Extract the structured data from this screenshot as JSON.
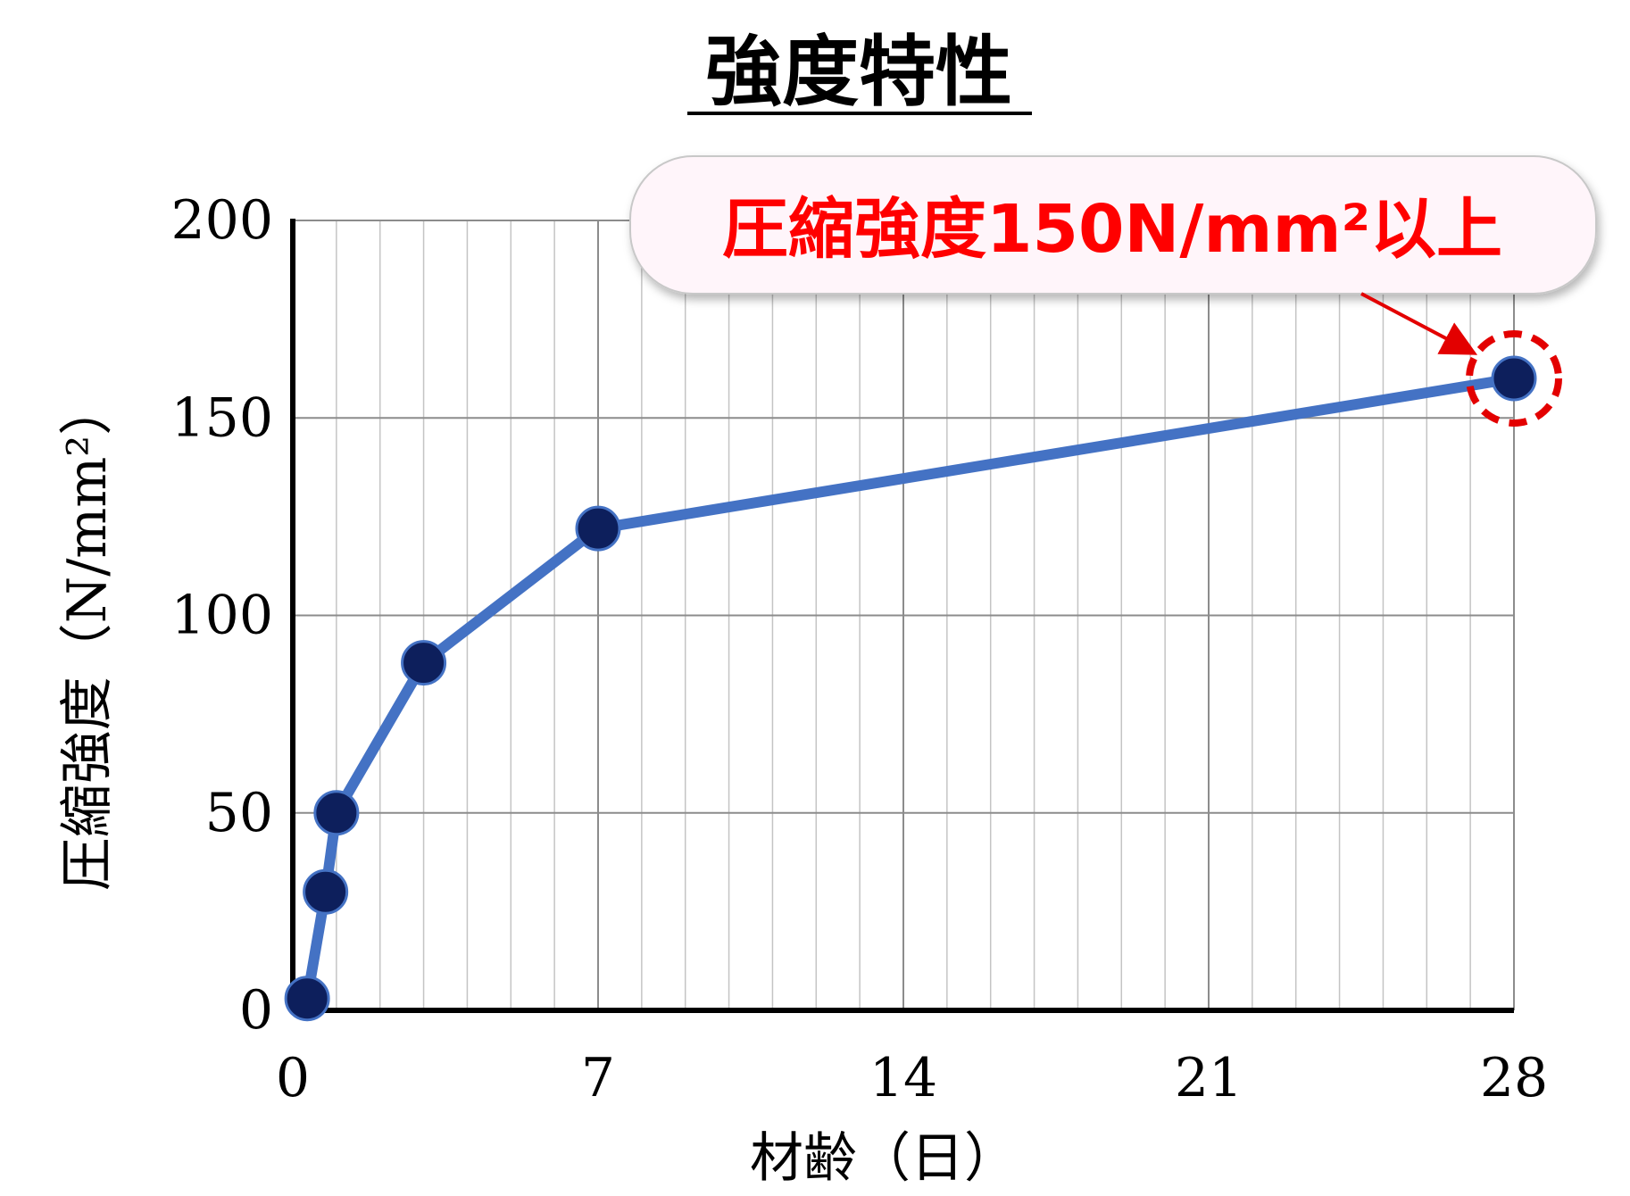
{
  "title": "強度特性",
  "chart_data": {
    "type": "line",
    "xlabel": "材齢（日）",
    "ylabel": "圧縮強度（N/mm²）",
    "xlim": [
      0,
      28
    ],
    "ylim": [
      0,
      200
    ],
    "x_ticks": [
      "0",
      "7",
      "14",
      "21",
      "28"
    ],
    "y_ticks": [
      "0",
      "50",
      "100",
      "150",
      "200"
    ],
    "grid": true,
    "x_minor_step": 1,
    "series": [
      {
        "x": [
          0.33,
          0.75,
          1,
          3,
          7,
          28
        ],
        "values": [
          3,
          30,
          50,
          88,
          122,
          160
        ],
        "color": "#4472C4",
        "marker_color": "#0D1F5C"
      }
    ],
    "annotation": {
      "text": "圧縮強度150N/mm²以上",
      "text_color": "#FF0000",
      "box_fill": "#FFF5FA",
      "target_point_index": 5,
      "highlight_color": "#E30000"
    }
  }
}
